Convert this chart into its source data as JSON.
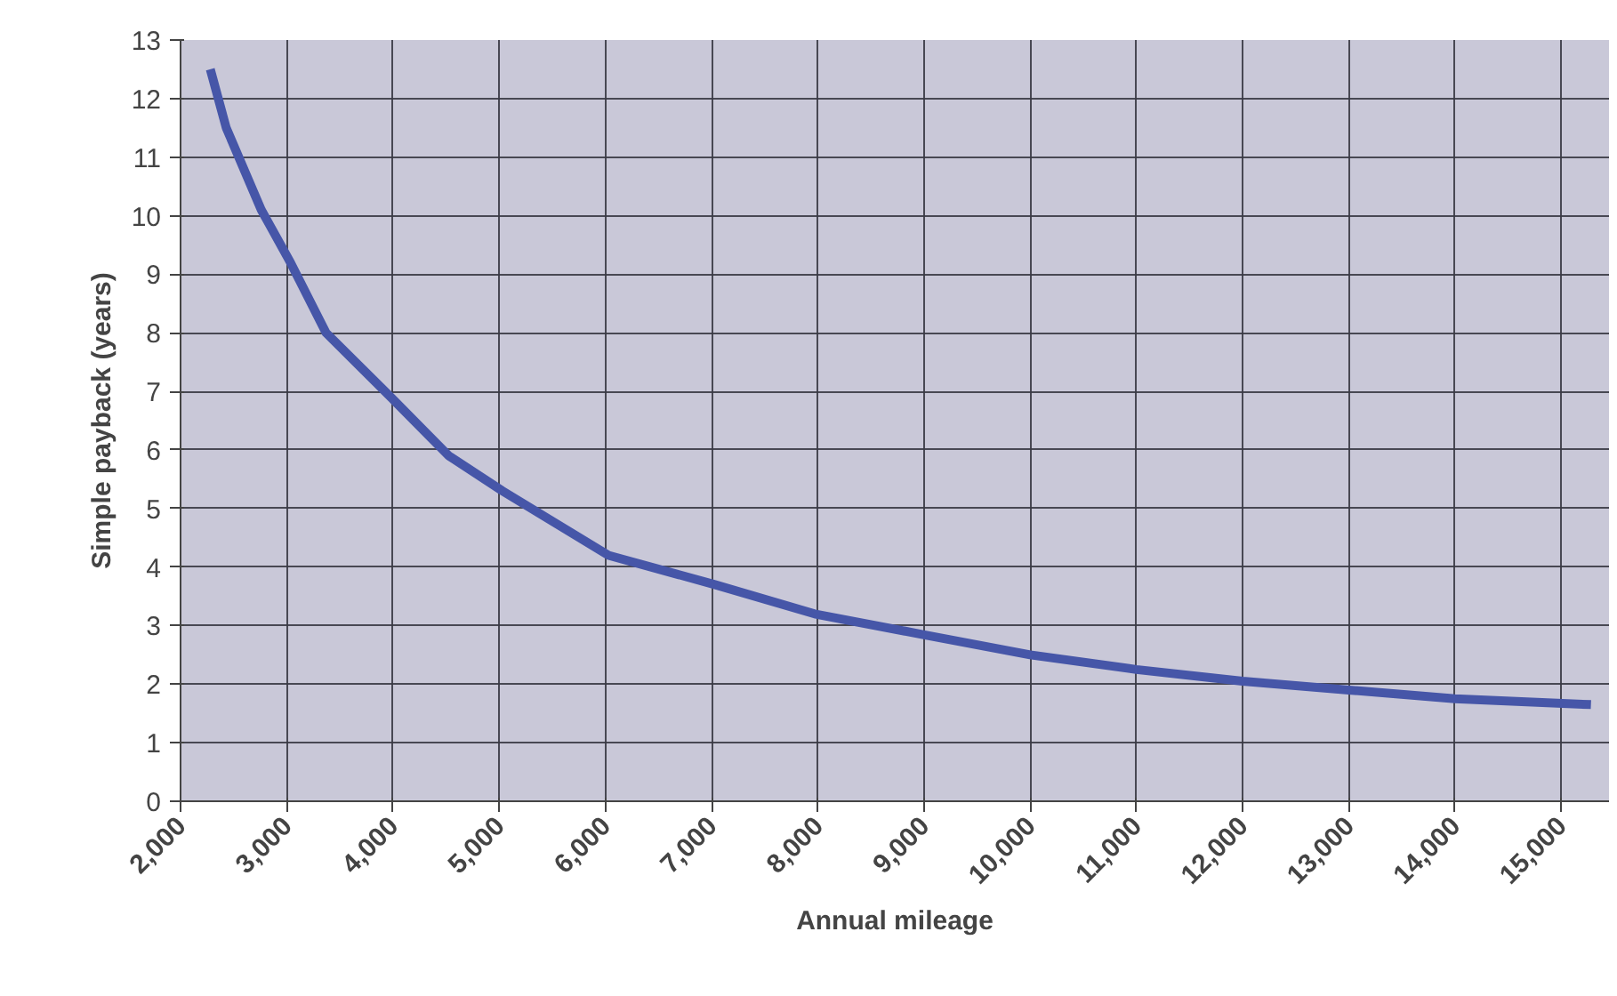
{
  "chart_data": {
    "type": "line",
    "xlabel": "Annual mileage",
    "ylabel": "Simple payback (years)",
    "x": [
      2280,
      2430,
      2760,
      3035,
      3370,
      3980,
      4525,
      5030,
      6030,
      7030,
      7970,
      8980,
      10000,
      11000,
      12000,
      13000,
      14000,
      15280
    ],
    "series": [
      {
        "color": "#4656a8",
        "values": [
          12.5,
          11.5,
          10.1,
          9.2,
          8.0,
          6.9,
          5.9,
          5.3,
          4.2,
          3.7,
          3.2,
          2.85,
          2.5,
          2.25,
          2.05,
          1.9,
          1.75,
          1.65
        ]
      }
    ],
    "xlim": [
      2000,
      15450
    ],
    "ylim": [
      0,
      13
    ],
    "xticks": [
      {
        "value": 2000,
        "label": "2,000"
      },
      {
        "value": 3000,
        "label": "3,000"
      },
      {
        "value": 4000,
        "label": "4,000"
      },
      {
        "value": 5000,
        "label": "5,000"
      },
      {
        "value": 6000,
        "label": "6,000"
      },
      {
        "value": 7000,
        "label": "7,000"
      },
      {
        "value": 8000,
        "label": "8,000"
      },
      {
        "value": 9000,
        "label": "9,000"
      },
      {
        "value": 10000,
        "label": "10,000"
      },
      {
        "value": 11000,
        "label": "11,000"
      },
      {
        "value": 12000,
        "label": "12,000"
      },
      {
        "value": 13000,
        "label": "13,000"
      },
      {
        "value": 14000,
        "label": "14,000"
      },
      {
        "value": 15000,
        "label": "15,000"
      }
    ],
    "yticks": [
      0,
      1,
      2,
      3,
      4,
      5,
      6,
      7,
      8,
      9,
      10,
      11,
      12,
      13
    ],
    "grid": true,
    "line_style": "solid"
  }
}
